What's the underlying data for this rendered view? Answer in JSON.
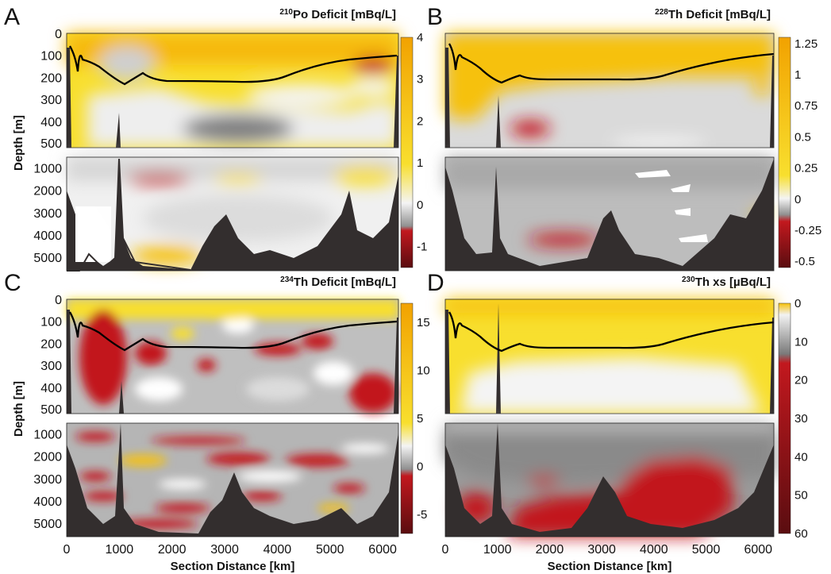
{
  "chart_data": [
    {
      "panel": "A",
      "type": "heatmap",
      "title_sup": "210",
      "title_text": "Po Deficit [mBq/L]",
      "ylabel": "Depth [m]",
      "xlabel": "",
      "depth_ticks_upper": [
        0,
        100,
        200,
        300,
        400,
        500
      ],
      "depth_ticks_lower": [
        1000,
        2000,
        3000,
        4000,
        5000
      ],
      "ylim_upper": [
        0,
        520
      ],
      "ylim_lower": [
        520,
        5600
      ],
      "x_ticks": [],
      "colorbar_ticks": [
        4,
        3,
        2,
        1,
        0,
        -1
      ],
      "colorbar_range": [
        -1.5,
        4
      ],
      "mixed_layer_depth_line": [
        [
          0,
          60
        ],
        [
          200,
          90
        ],
        [
          400,
          140
        ],
        [
          800,
          190
        ],
        [
          1100,
          215
        ],
        [
          2000,
          210
        ],
        [
          3000,
          212
        ],
        [
          4000,
          200
        ],
        [
          4600,
          180
        ],
        [
          5200,
          140
        ],
        [
          5700,
          115
        ],
        [
          6200,
          98
        ]
      ]
    },
    {
      "panel": "B",
      "type": "heatmap",
      "title_sup": "228",
      "title_text": "Th Deficit [mBq/L]",
      "ylabel": "",
      "xlabel": "",
      "depth_ticks_upper": [],
      "depth_ticks_lower": [],
      "ylim_upper": [
        0,
        520
      ],
      "ylim_lower": [
        520,
        5600
      ],
      "x_ticks": [],
      "colorbar_ticks": [
        1.25,
        1,
        0.75,
        0.5,
        0.25,
        0,
        -0.25,
        -0.5
      ],
      "colorbar_range": [
        -0.55,
        1.3
      ],
      "mixed_layer_depth_line": [
        [
          0,
          60
        ],
        [
          200,
          90
        ],
        [
          400,
          140
        ],
        [
          800,
          190
        ],
        [
          1100,
          215
        ],
        [
          2000,
          210
        ],
        [
          3000,
          212
        ],
        [
          4000,
          200
        ],
        [
          4600,
          180
        ],
        [
          5200,
          140
        ],
        [
          5700,
          115
        ],
        [
          6200,
          98
        ]
      ]
    },
    {
      "panel": "C",
      "type": "heatmap",
      "title_sup": "234",
      "title_text": "Th Deficit [mBq/L]",
      "ylabel": "Depth [m]",
      "xlabel": "Section Distance [km]",
      "depth_ticks_upper": [
        0,
        100,
        200,
        300,
        400,
        500
      ],
      "depth_ticks_lower": [
        1000,
        2000,
        3000,
        4000,
        5000
      ],
      "ylim_upper": [
        0,
        520
      ],
      "ylim_lower": [
        520,
        5600
      ],
      "x_ticks": [
        0,
        1000,
        2000,
        3000,
        4000,
        5000,
        6000
      ],
      "xlim": [
        0,
        6300
      ],
      "colorbar_ticks": [
        15,
        10,
        5,
        0,
        -5
      ],
      "colorbar_range": [
        -7,
        17
      ],
      "mixed_layer_depth_line": [
        [
          0,
          60
        ],
        [
          200,
          90
        ],
        [
          400,
          140
        ],
        [
          800,
          190
        ],
        [
          1100,
          215
        ],
        [
          2000,
          210
        ],
        [
          3000,
          212
        ],
        [
          4000,
          200
        ],
        [
          4600,
          180
        ],
        [
          5200,
          140
        ],
        [
          5700,
          115
        ],
        [
          6200,
          98
        ]
      ]
    },
    {
      "panel": "D",
      "type": "heatmap",
      "title_sup": "230",
      "title_text": "Th xs [µBq/L]",
      "ylabel": "",
      "xlabel": "Section Distance [km]",
      "depth_ticks_upper": [],
      "depth_ticks_lower": [],
      "ylim_upper": [
        0,
        520
      ],
      "ylim_lower": [
        520,
        5600
      ],
      "x_ticks": [
        0,
        1000,
        2000,
        3000,
        4000,
        5000,
        6000
      ],
      "xlim": [
        0,
        6300
      ],
      "colorbar_ticks": [
        0,
        10,
        20,
        30,
        40,
        50,
        60
      ],
      "colorbar_range": [
        0,
        60
      ],
      "mixed_layer_depth_line": [
        [
          0,
          60
        ],
        [
          200,
          90
        ],
        [
          400,
          140
        ],
        [
          800,
          190
        ],
        [
          1100,
          215
        ],
        [
          2000,
          210
        ],
        [
          3000,
          212
        ],
        [
          4000,
          200
        ],
        [
          4600,
          180
        ],
        [
          5200,
          140
        ],
        [
          5700,
          115
        ],
        [
          6200,
          98
        ]
      ]
    }
  ],
  "colors": {
    "yellow": "#f6c10a",
    "orange": "#f2a900",
    "light": "#f4f4f4",
    "grey": "#8a8a8a",
    "red": "#c2181e",
    "darkred": "#5a0d10",
    "bathymetry": "#332e2e",
    "contour_line": "#000000"
  }
}
